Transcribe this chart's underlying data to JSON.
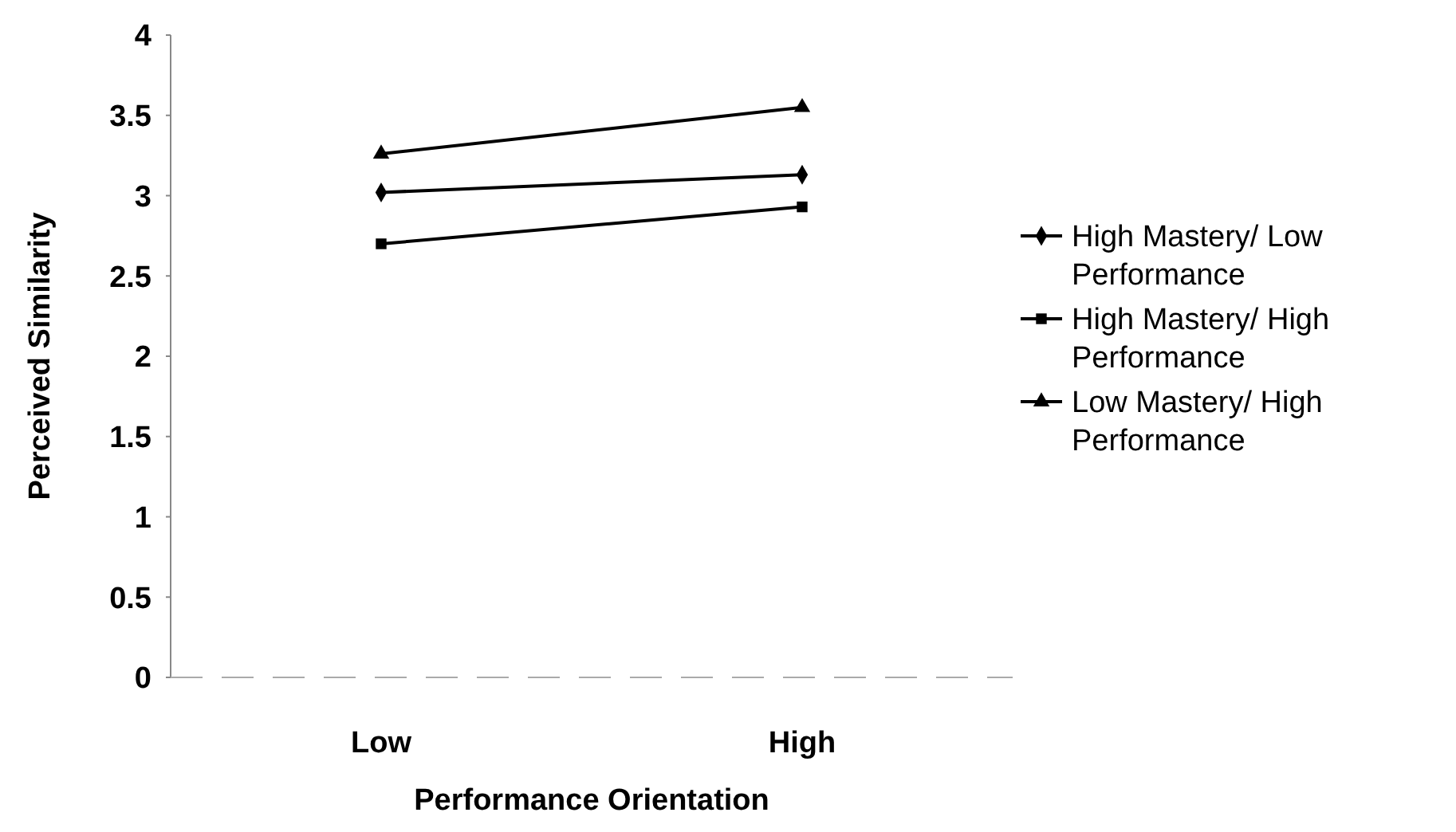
{
  "chart_data": {
    "type": "line",
    "xlabel": "Performance Orientation",
    "ylabel": "Perceived Similarity",
    "categories": [
      "Low",
      "High"
    ],
    "series": [
      {
        "name": "High Mastery/ Low Performance",
        "color": "#000000",
        "marker": "diamond",
        "values": [
          3.02,
          3.13
        ]
      },
      {
        "name": "High Mastery/ High Performance",
        "color": "#000000",
        "marker": "square",
        "values": [
          2.7,
          2.93
        ]
      },
      {
        "name": "Low Mastery/ High Performance",
        "color": "#000000",
        "marker": "triangle",
        "values": [
          3.26,
          3.55
        ]
      }
    ],
    "ylim": [
      0,
      4
    ],
    "yticks": [
      0,
      0.5,
      1,
      1.5,
      2,
      2.5,
      3,
      3.5,
      4
    ],
    "legend": "right",
    "grid": false
  }
}
